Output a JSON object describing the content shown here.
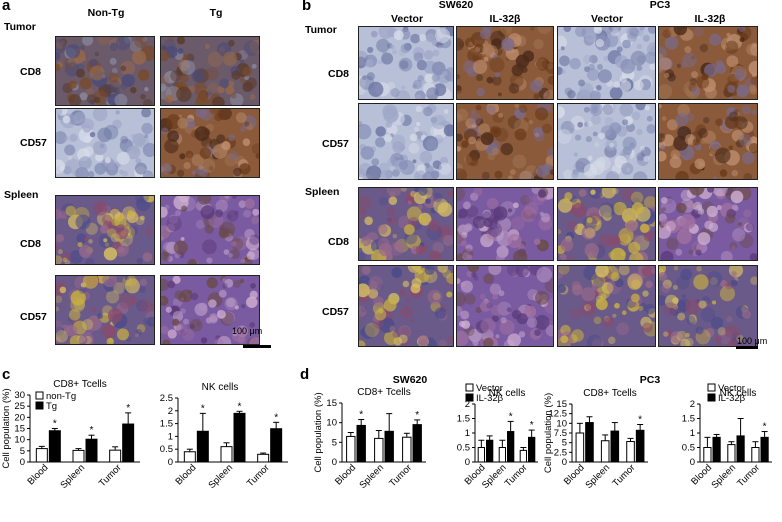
{
  "panel_a": {
    "letter": "a",
    "columns": [
      "Non-Tg",
      "Tg"
    ],
    "sections": [
      {
        "label": "Tumor",
        "rows": [
          "CD8",
          "CD57"
        ]
      },
      {
        "label": "Spleen",
        "rows": [
          "CD8",
          "CD57"
        ]
      }
    ],
    "scale_bar": "100 μm"
  },
  "panel_b": {
    "letter": "b",
    "groups": [
      "SW620",
      "PC3"
    ],
    "columns": [
      "Vector",
      "IL-32β",
      "Vector",
      "IL-32β"
    ],
    "sections": [
      {
        "label": "Tumor",
        "rows": [
          "CD8",
          "CD57"
        ]
      },
      {
        "label": "Spleen",
        "rows": [
          "CD8",
          "CD57"
        ]
      }
    ],
    "scale_bar": "100 μm"
  },
  "panel_c": {
    "letter": "c"
  },
  "panel_d": {
    "letter": "d",
    "groups": [
      "SW620",
      "PC3"
    ]
  },
  "colors": {
    "open_bar": "#ffffff",
    "filled_bar": "#000000"
  },
  "chart_data": [
    {
      "type": "bar",
      "panel": "c",
      "title": "CD8+ Tcells",
      "ylabel": "Cell population (%)",
      "ylim": [
        0,
        30
      ],
      "yticks": [
        0,
        5,
        10,
        15,
        20,
        25,
        30
      ],
      "categories": [
        "Blood",
        "Spleen",
        "Tumor"
      ],
      "series": [
        {
          "name": "non-Tg",
          "values": [
            6,
            5.2,
            5.3
          ],
          "errors": [
            1,
            0.8,
            1.5
          ]
        },
        {
          "name": "Tg",
          "values": [
            14,
            10.2,
            17
          ],
          "errors": [
            1,
            1.8,
            5
          ]
        }
      ],
      "significance": [
        "*",
        "*",
        "*"
      ]
    },
    {
      "type": "bar",
      "panel": "c",
      "title": "NK cells",
      "ylim": [
        0,
        2.5
      ],
      "yticks": [
        0,
        0.5,
        1,
        1.5,
        2,
        2.5
      ],
      "categories": [
        "Blood",
        "Spleen",
        "Tumor"
      ],
      "series": [
        {
          "values": [
            0.4,
            0.6,
            0.3
          ],
          "errors": [
            0.1,
            0.15,
            0.05
          ]
        },
        {
          "values": [
            1.2,
            1.9,
            1.3
          ],
          "errors": [
            0.7,
            0.08,
            0.25
          ]
        }
      ],
      "significance": [
        "*",
        "*",
        "*"
      ]
    },
    {
      "type": "bar",
      "panel": "d",
      "group": "SW620",
      "title": "CD8+ Tcells",
      "ylabel": "Cell population (%)",
      "ylim": [
        0,
        15
      ],
      "yticks": [
        0,
        5,
        10,
        15
      ],
      "categories": [
        "Blood",
        "Spleen",
        "Tumor"
      ],
      "series": [
        {
          "name": "Vector",
          "values": [
            6.5,
            6,
            6.3
          ],
          "errors": [
            1,
            2,
            1
          ]
        },
        {
          "name": "IL-32β",
          "values": [
            9.3,
            7.8,
            9.5
          ],
          "errors": [
            1.5,
            4.5,
            1.2
          ]
        }
      ],
      "significance": [
        "*",
        "",
        "*"
      ]
    },
    {
      "type": "bar",
      "panel": "d",
      "group": "SW620",
      "title": "NK cells",
      "ylim": [
        0,
        2
      ],
      "yticks": [
        0,
        0.5,
        1,
        1.5,
        2
      ],
      "categories": [
        "Blood",
        "Spleen",
        "Tumor"
      ],
      "series": [
        {
          "values": [
            0.5,
            0.5,
            0.4
          ],
          "errors": [
            0.25,
            0.25,
            0.1
          ]
        },
        {
          "values": [
            0.75,
            1.05,
            0.85
          ],
          "errors": [
            0.15,
            0.35,
            0.25
          ]
        }
      ],
      "significance": [
        "",
        "*",
        "*"
      ]
    },
    {
      "type": "bar",
      "panel": "d",
      "group": "PC3",
      "title": "CD8+ Tcells",
      "ylabel": "Cell population (%)",
      "ylim": [
        0,
        15
      ],
      "yticks": [
        0,
        2.5,
        5,
        7.5,
        10,
        12.5,
        15
      ],
      "categories": [
        "Blood",
        "Spleen",
        "Tumor"
      ],
      "series": [
        {
          "name": "Vector",
          "values": [
            7.5,
            5.5,
            5.3
          ],
          "errors": [
            2.5,
            1.5,
            0.8
          ]
        },
        {
          "name": "IL-32β",
          "values": [
            10.2,
            8,
            8.2
          ],
          "errors": [
            1.5,
            2.2,
            1.5
          ]
        }
      ],
      "significance": [
        "",
        "",
        "*"
      ]
    },
    {
      "type": "bar",
      "panel": "d",
      "group": "PC3",
      "title": "NK cells",
      "ylim": [
        0,
        2
      ],
      "yticks": [
        0,
        0.5,
        1,
        1.5,
        2
      ],
      "categories": [
        "Blood",
        "Spleen",
        "Tumor"
      ],
      "series": [
        {
          "name": "Vector",
          "values": [
            0.5,
            0.6,
            0.5
          ],
          "errors": [
            0.35,
            0.1,
            0.2
          ]
        },
        {
          "name": "IL-32β",
          "values": [
            0.85,
            0.9,
            0.85
          ],
          "errors": [
            0.1,
            0.6,
            0.2
          ]
        }
      ],
      "significance": [
        "",
        "",
        "*"
      ]
    }
  ]
}
